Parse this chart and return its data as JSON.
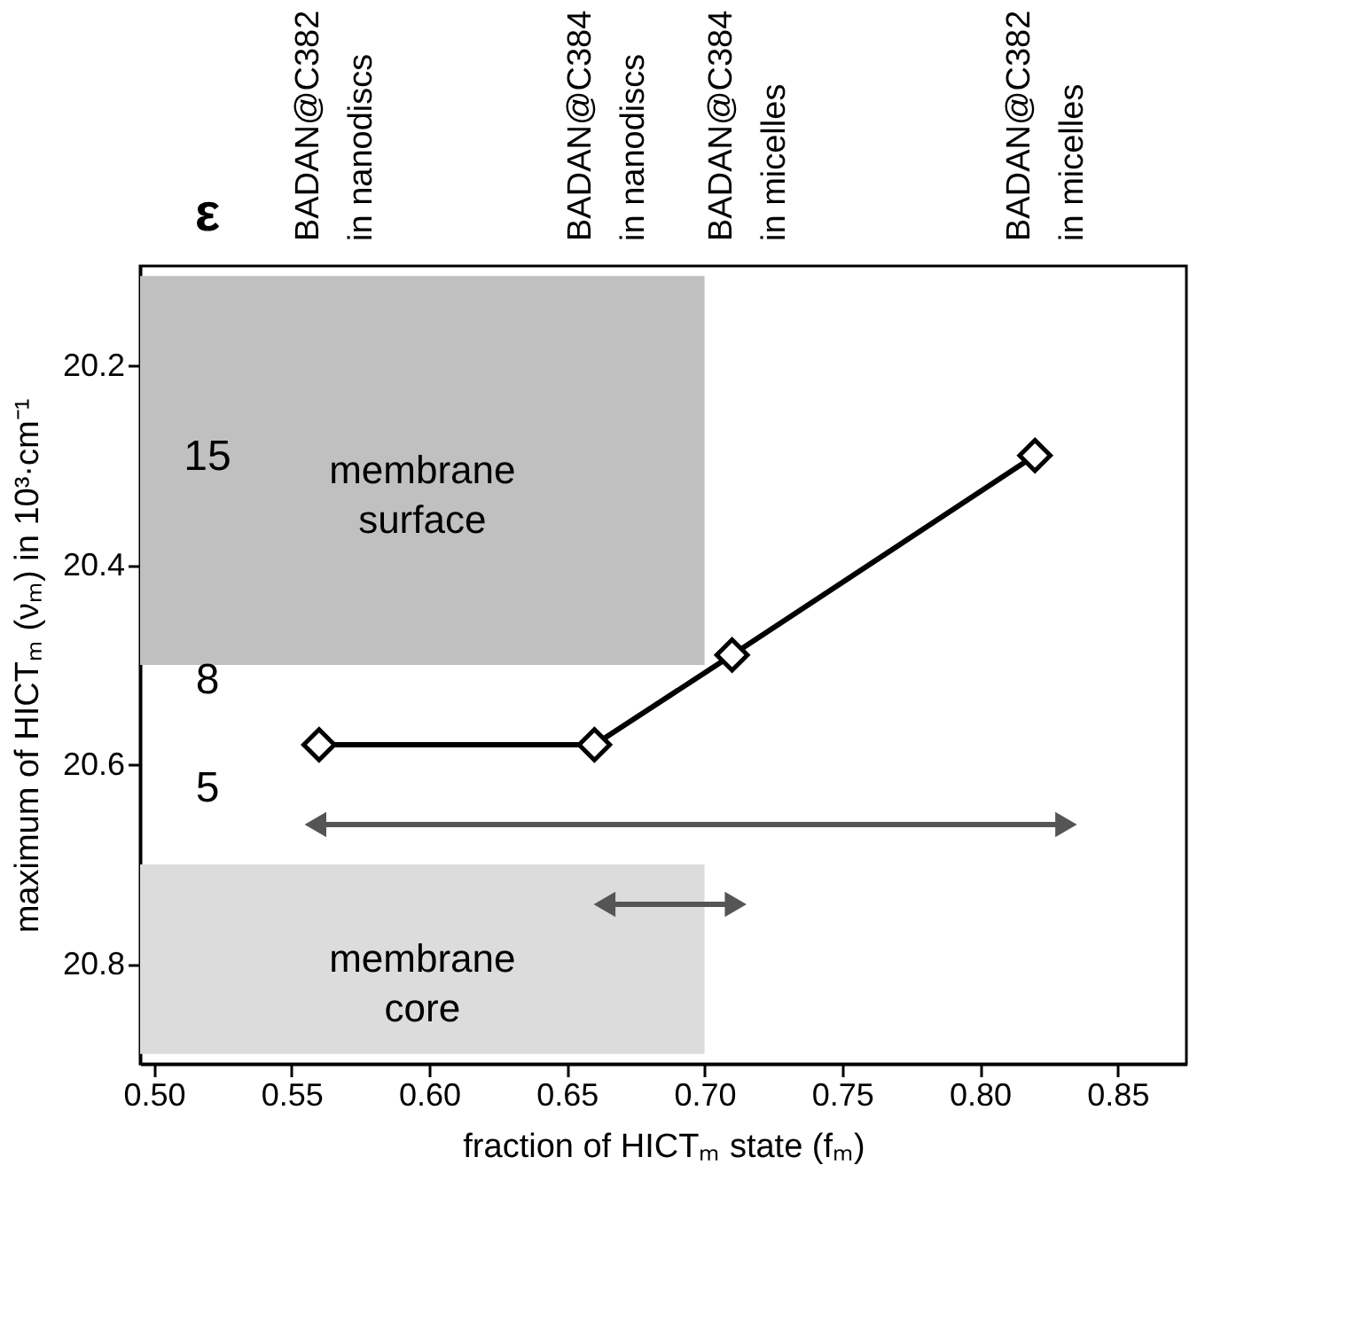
{
  "chart_data": {
    "type": "line",
    "xlabel": "fraction of HICTₘ state (fₘ)",
    "ylabel": "maximum of HICTₘ (νₘ) in 10³·cm⁻¹",
    "xlim": [
      0.495,
      0.875
    ],
    "xticks": [
      {
        "value": 0.5,
        "label": "0.50"
      },
      {
        "value": 0.55,
        "label": "0.55"
      },
      {
        "value": 0.6,
        "label": "0.60"
      },
      {
        "value": 0.65,
        "label": "0.65"
      },
      {
        "value": 0.7,
        "label": "0.70"
      },
      {
        "value": 0.75,
        "label": "0.75"
      },
      {
        "value": 0.8,
        "label": "0.80"
      },
      {
        "value": 0.85,
        "label": "0.85"
      }
    ],
    "ylim": [
      20.9,
      20.1
    ],
    "yticks": [
      20.2,
      20.4,
      20.6,
      20.8
    ],
    "marker": "diamond",
    "line_style": "solid",
    "grid": false,
    "series": [
      {
        "type": "line",
        "marker": "none",
        "color": "#c0c0c0",
        "x": [
          0.495,
          0.7
        ],
        "values": [
          null,
          null
        ],
        "lower": [
          20.5,
          20.5
        ],
        "upper": [
          20.11,
          20.11
        ]
      },
      {
        "type": "line",
        "marker": "none",
        "color": "#dcdcdc",
        "x": [
          0.495,
          0.7
        ],
        "values": [
          null,
          null
        ],
        "lower": [
          20.89,
          20.89
        ],
        "upper": [
          20.7,
          20.7
        ]
      },
      {
        "color": "#000000",
        "x": [
          0.56,
          0.66,
          0.71,
          0.82
        ],
        "values": [
          20.58,
          20.58,
          20.49,
          20.29
        ]
      },
      {
        "type": "line",
        "marker": "triangle",
        "color": "#555555",
        "x": [
          0.56,
          0.83
        ],
        "values": [
          20.66,
          20.66
        ]
      },
      {
        "type": "line",
        "marker": "triangle",
        "color": "#555555",
        "x": [
          0.665,
          0.71
        ],
        "values": [
          20.74,
          20.74
        ]
      }
    ],
    "annotations": [
      "BADAN@C382\nin nanodiscs",
      "BADAN@C384\nin nanodiscs",
      "BADAN@C384\nin micelles",
      "BADAN@C382\nin micelles",
      "membrane surface",
      "membrane core",
      "ε",
      "15",
      "8",
      "5"
    ]
  }
}
